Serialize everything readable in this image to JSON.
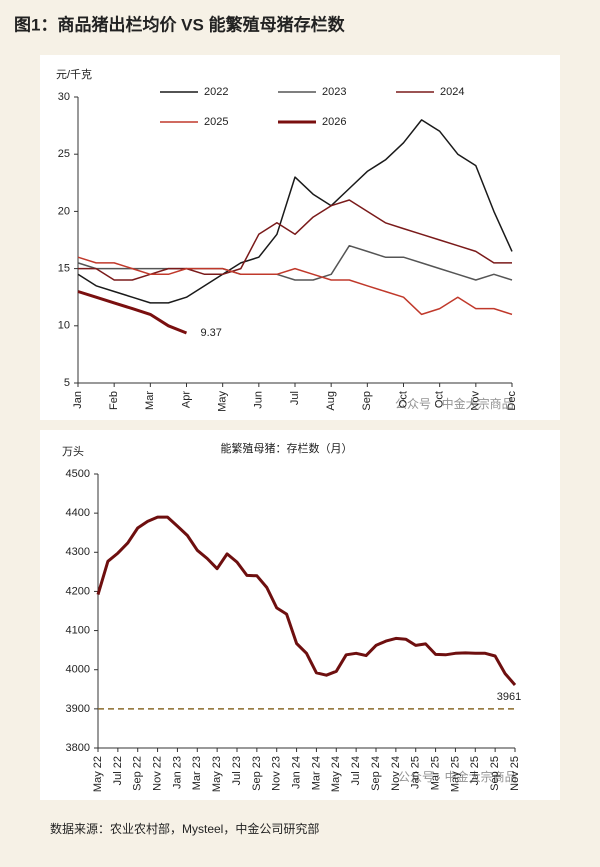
{
  "title": "图1：商品猪出栏均价 VS 能繁殖母猪存栏数",
  "source": "数据来源：农业农村部，Mysteel，中金公司研究部",
  "watermark": "公众号 · 中金大宗商品",
  "chart_data": [
    {
      "type": "line",
      "y_label": "元/千克",
      "categories": [
        "Jan",
        null,
        "Feb",
        null,
        "Mar",
        null,
        "Apr",
        null,
        "May",
        null,
        "Jun",
        null,
        "Jul",
        null,
        "Aug",
        null,
        "Sep",
        null,
        "Oct",
        null,
        "Oct",
        null,
        "Nov",
        null,
        "Dec"
      ],
      "series": [
        {
          "name": "2022",
          "color": "#1a1a1a",
          "values": [
            14.5,
            13.5,
            13,
            12.5,
            12,
            12,
            12.5,
            13.5,
            14.5,
            15.5,
            16,
            18,
            23,
            21.5,
            20.5,
            22,
            23.5,
            24.5,
            26,
            28,
            27,
            25,
            24,
            20,
            16.5
          ]
        },
        {
          "name": "2023",
          "color": "#555555",
          "values": [
            15.5,
            15,
            15,
            15,
            15,
            15,
            15,
            15,
            15,
            14.5,
            14.5,
            14.5,
            14,
            14,
            14.5,
            17,
            16.5,
            16,
            16,
            15.5,
            15,
            14.5,
            14,
            14.5,
            14
          ]
        },
        {
          "name": "2024",
          "color": "#7a1a1a",
          "values": [
            15,
            15,
            14,
            14,
            14.5,
            15,
            15,
            14.5,
            14.5,
            15,
            18,
            19,
            18,
            19.5,
            20.5,
            21,
            20,
            19,
            18.5,
            18,
            17.5,
            17,
            16.5,
            15.5,
            15.5
          ]
        },
        {
          "name": "2025",
          "color": "#c0392b",
          "values": [
            16,
            15.5,
            15.5,
            15,
            14.5,
            14.5,
            15,
            15,
            15,
            14.5,
            14.5,
            14.5,
            15,
            14.5,
            14,
            14,
            13.5,
            13,
            12.5,
            11,
            11.5,
            12.5,
            11.5,
            11.5,
            11
          ]
        },
        {
          "name": "2026",
          "color": "#7a0f0f",
          "end_label": true,
          "values": [
            13,
            12.5,
            12,
            11.5,
            11,
            10,
            9.37,
            null,
            null,
            null,
            null,
            null,
            null,
            null,
            null,
            null,
            null,
            null,
            null,
            null,
            null,
            null,
            null,
            null,
            null
          ]
        }
      ],
      "ylim": [
        5,
        30
      ],
      "yticks": [
        5,
        10,
        15,
        20,
        25,
        30
      ],
      "legend": "top"
    },
    {
      "type": "line",
      "title": "能繁殖母猪：存栏数（月）",
      "y_label": "万头",
      "categories": [
        "May 22",
        null,
        "Jul 22",
        null,
        "Sep 22",
        null,
        "Nov 22",
        null,
        "Jan 23",
        null,
        "Mar 23",
        null,
        "May 23",
        null,
        "Jul 23",
        null,
        "Sep 23",
        null,
        "Nov 23",
        null,
        "Jan 24",
        null,
        "Mar 24",
        null,
        "May 24",
        null,
        "Jul 24",
        null,
        "Sep 24",
        null,
        "Nov 24",
        null,
        "Jan 25",
        null,
        "Mar 25",
        null,
        "May 25",
        null,
        "Jul 25",
        null,
        "Sep 25",
        null,
        "Nov 25"
      ],
      "values": [
        4192,
        4277,
        4298,
        4324,
        4362,
        4379,
        4390,
        4390,
        4367,
        4343,
        4305,
        4284,
        4258,
        4296,
        4275,
        4241,
        4240,
        4210,
        4158,
        4142,
        4067,
        4042,
        3992,
        3986,
        3996,
        4038,
        4042,
        4036,
        4062,
        4073,
        4080,
        4078,
        4062,
        4066,
        4039,
        4038,
        4042,
        4043,
        4042,
        4042,
        4035,
        3990,
        3961
      ],
      "color": "#6e0f0f",
      "end_label": true,
      "reference_line": 3900,
      "reference_color": "#8a6a2a",
      "ylim": [
        3800,
        4500
      ],
      "yticks": [
        3800,
        3900,
        4000,
        4100,
        4200,
        4300,
        4400,
        4500
      ]
    }
  ]
}
